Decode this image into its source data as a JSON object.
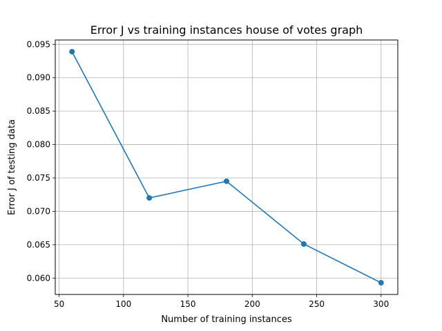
{
  "chart_data": {
    "type": "line",
    "title": "Error J vs training instances house of votes graph",
    "xlabel": "Number of training instances",
    "ylabel": "Error J of testing data",
    "x": [
      60,
      120,
      180,
      240,
      300
    ],
    "series": [
      {
        "values": [
          0.0939,
          0.072,
          0.0745,
          0.0651,
          0.0593
        ]
      }
    ],
    "xlim": [
      47,
      313
    ],
    "ylim": [
      0.05755,
      0.09565
    ],
    "xticks": [
      50,
      100,
      150,
      200,
      250,
      300
    ],
    "yticks": [
      0.06,
      0.065,
      0.07,
      0.075,
      0.08,
      0.085,
      0.09,
      0.095
    ],
    "xtick_labels": [
      "50",
      "100",
      "150",
      "200",
      "250",
      "300"
    ],
    "ytick_labels": [
      "0.060",
      "0.065",
      "0.070",
      "0.075",
      "0.080",
      "0.085",
      "0.090",
      "0.095"
    ],
    "grid": true,
    "marker": "circle",
    "line_color": "#1f77b4"
  }
}
